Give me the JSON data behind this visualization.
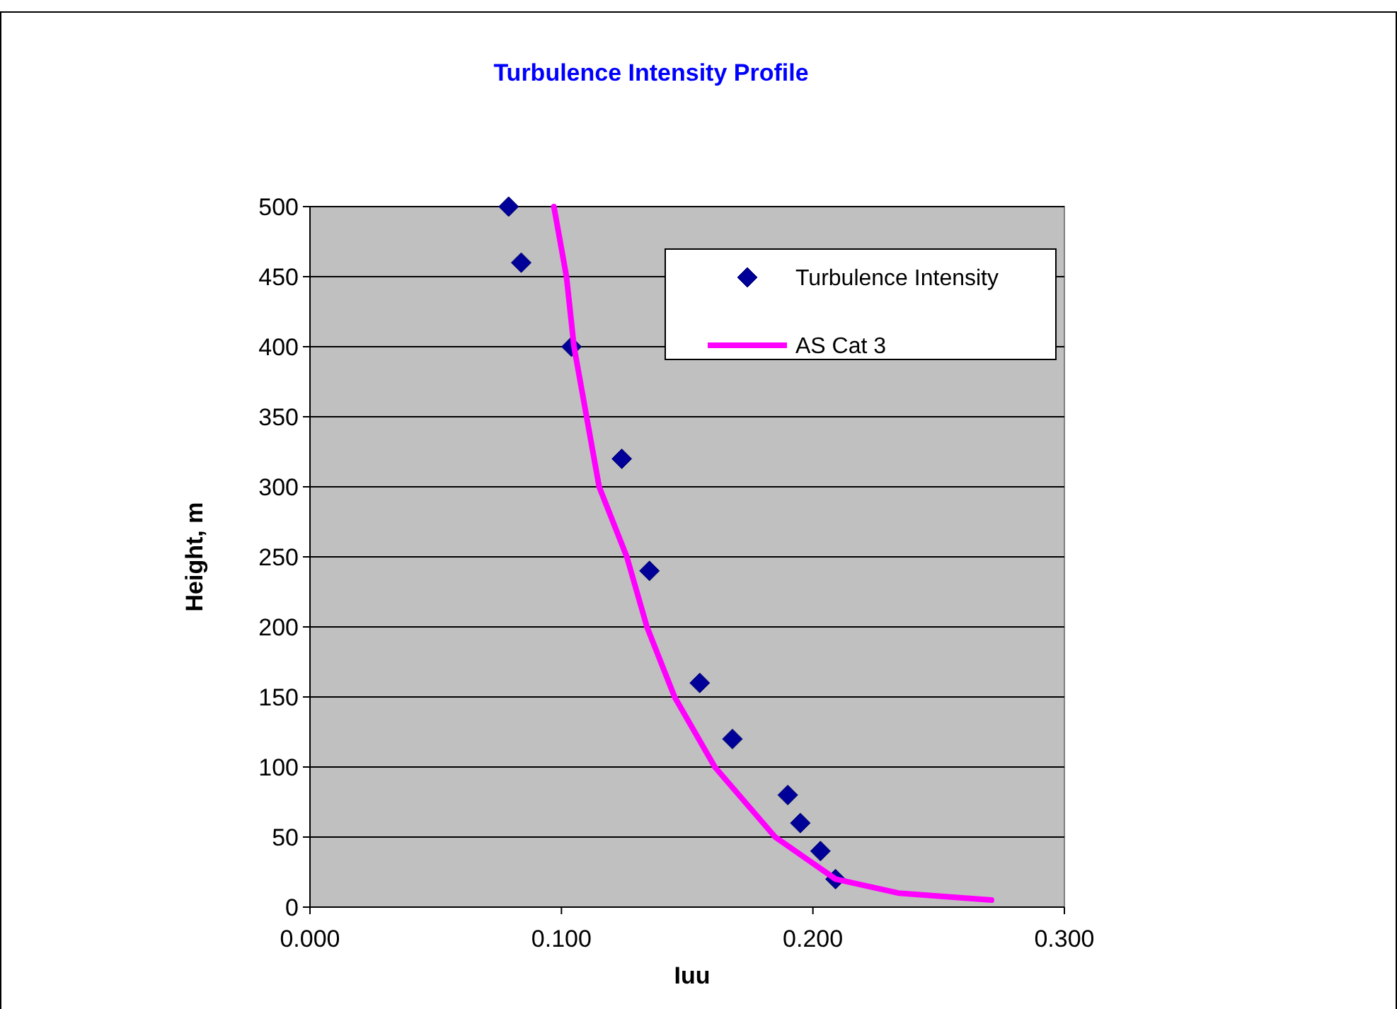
{
  "chart_data": {
    "type": "scatter",
    "title": "Turbulence Intensity Profile",
    "xlabel": "Iuu",
    "ylabel": "Height, m",
    "xlim": [
      0,
      0.3
    ],
    "xticks": [
      {
        "value": 0,
        "label": "0.000"
      },
      {
        "value": 0.1,
        "label": "0.100"
      },
      {
        "value": 0.2,
        "label": "0.200"
      },
      {
        "value": 0.3,
        "label": "0.300"
      }
    ],
    "ylim": [
      0,
      500
    ],
    "yticks": [
      0,
      50,
      100,
      150,
      200,
      250,
      300,
      350,
      400,
      450,
      500
    ],
    "grid": "y",
    "legend": "top right",
    "series": [
      {
        "name": "Turbulence Intensity",
        "marker": "diamond",
        "color": "#000099",
        "x": [
          0.079,
          0.084,
          0.104,
          0.124,
          0.135,
          0.155,
          0.168,
          0.19,
          0.195,
          0.203,
          0.209
        ],
        "values": [
          500,
          460,
          400,
          320,
          240,
          160,
          120,
          80,
          60,
          40,
          20
        ]
      },
      {
        "name": "AS Cat 3",
        "type": "line",
        "marker": "none",
        "line_style": "solid",
        "color": "#ff00ff",
        "x": [
          0.097,
          0.102,
          0.105,
          0.115,
          0.126,
          0.134,
          0.145,
          0.161,
          0.185,
          0.209,
          0.234,
          0.271
        ],
        "values": [
          500,
          450,
          400,
          300,
          250,
          200,
          150,
          100,
          50,
          20,
          10,
          5
        ]
      }
    ]
  }
}
